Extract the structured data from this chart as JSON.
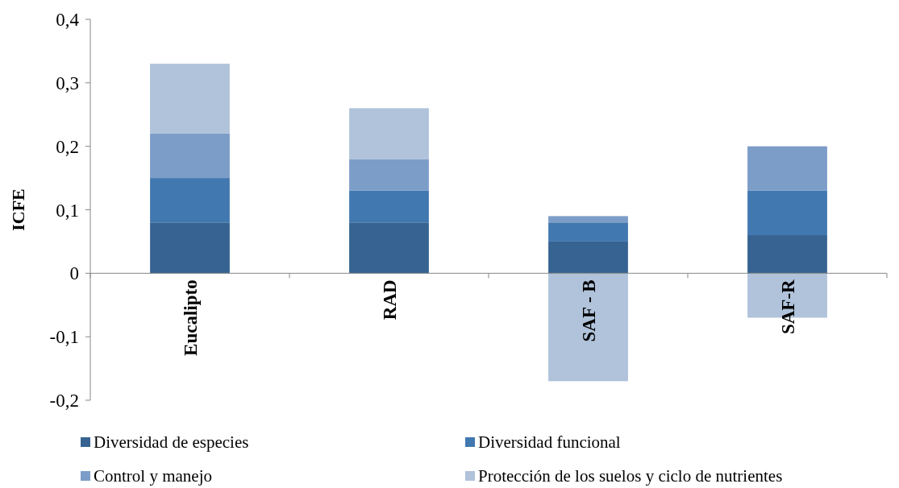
{
  "chart_data": {
    "type": "bar",
    "stacked": true,
    "ylabel": "ICFE",
    "categories": [
      "Eucalipto",
      "RAD",
      "SAF - B",
      "SAF-R"
    ],
    "series": [
      {
        "name": "Diversidad de especies",
        "color": "#366391",
        "values": [
          0.08,
          0.08,
          0.05,
          0.06
        ]
      },
      {
        "name": "Diversidad funcional",
        "color": "#4278b0",
        "values": [
          0.07,
          0.05,
          0.03,
          0.07
        ]
      },
      {
        "name": "Control y manejo",
        "color": "#7c9dc8",
        "values": [
          0.07,
          0.05,
          0.01,
          0.07
        ]
      },
      {
        "name": "Protección de los suelos y ciclo de nutrientes",
        "color": "#b0c3db",
        "values": [
          0.11,
          0.08,
          -0.17,
          -0.07
        ]
      }
    ],
    "ylim": [
      -0.2,
      0.4
    ],
    "yticks": [
      {
        "value": -0.2,
        "label": "-0,2"
      },
      {
        "value": -0.1,
        "label": "-0,1"
      },
      {
        "value": 0,
        "label": "0"
      },
      {
        "value": 0.1,
        "label": "0,1"
      },
      {
        "value": 0.2,
        "label": "0,2"
      },
      {
        "value": 0.3,
        "label": "0,3"
      },
      {
        "value": 0.4,
        "label": "0,4"
      }
    ],
    "grid": false,
    "legend": "bottom"
  }
}
